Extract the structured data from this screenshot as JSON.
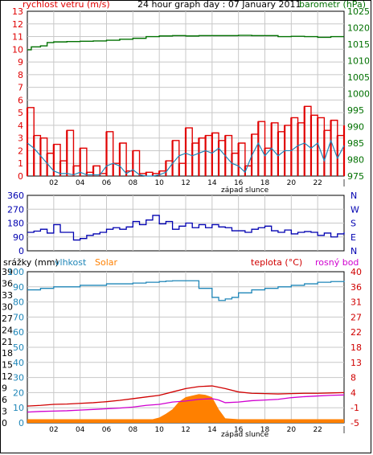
{
  "colors": {
    "wind": "#e00000",
    "gust_fill": "#e00000",
    "wind_avg": "#1f86b8",
    "pressure": "#007000",
    "direction": "#0000b0",
    "humidity": "#1f86b8",
    "solar": "#ff8000",
    "temp": "#d00000",
    "dew": "#d000d0",
    "rain": "#1f86b8",
    "grid": "#c8c8c8"
  },
  "chart_data": [
    {
      "type": "line",
      "title": "24 hour graph day : 07 January 2011",
      "left_axis_label": "rychlost vetru (m/s)",
      "right_axis_label": "barometr (hPa)",
      "x_tick_labels": [
        "02",
        "04",
        "06",
        "08",
        "10",
        "12",
        "14",
        "16",
        "18",
        "20",
        "22"
      ],
      "x_annotation": "západ slunce",
      "ylim_left": [
        0,
        13
      ],
      "ylim_right": [
        975,
        1025
      ],
      "yticks_left": [
        "0",
        "1",
        "2",
        "3",
        "4",
        "5",
        "6",
        "7",
        "8",
        "9",
        "10",
        "11",
        "12",
        "13"
      ],
      "yticks_right": [
        "975",
        "980",
        "985",
        "990",
        "995",
        "1000",
        "1005",
        "1010",
        "1015",
        "1020",
        "1025"
      ],
      "series": [
        {
          "name": "wind gust",
          "hours": [
            0,
            0.5,
            1,
            1.5,
            2,
            2.5,
            3,
            3.5,
            4,
            4.5,
            5,
            5.5,
            6,
            6.5,
            7,
            7.5,
            8,
            8.5,
            9,
            9.5,
            10,
            10.5,
            11,
            11.5,
            12,
            12.5,
            13,
            13.5,
            14,
            14.5,
            15,
            15.5,
            16,
            16.5,
            17,
            17.5,
            18,
            18.5,
            19,
            19.5,
            20,
            20.5,
            21,
            21.5,
            22,
            22.5,
            23,
            23.5,
            24
          ],
          "values": [
            5.4,
            3.2,
            3.0,
            1.8,
            2.5,
            1.2,
            3.6,
            0.8,
            2.2,
            0.3,
            0.8,
            0.2,
            3.5,
            1.0,
            2.6,
            0.4,
            2.0,
            0.2,
            0.3,
            0.2,
            0.4,
            1.2,
            2.8,
            1.0,
            3.8,
            2.6,
            3.0,
            3.2,
            3.4,
            2.8,
            3.2,
            1.8,
            2.6,
            0.8,
            3.3,
            4.3,
            2.2,
            4.2,
            3.5,
            4.0,
            4.6,
            4.2,
            5.5,
            4.8,
            4.6,
            3.6,
            4.4,
            3.2,
            4.0
          ]
        },
        {
          "name": "wind average",
          "hours": [
            0,
            0.5,
            1,
            1.5,
            2,
            2.5,
            3,
            3.5,
            4,
            4.5,
            5,
            5.5,
            6,
            6.5,
            7,
            7.5,
            8,
            8.5,
            9,
            9.5,
            10,
            10.5,
            11,
            11.5,
            12,
            12.5,
            13,
            13.5,
            14,
            14.5,
            15,
            15.5,
            16,
            16.5,
            17,
            17.5,
            18,
            18.5,
            19,
            19.5,
            20,
            20.5,
            21,
            21.5,
            22,
            22.5,
            23,
            23.5,
            24
          ],
          "values": [
            2.6,
            2.2,
            1.6,
            1.0,
            0.4,
            0.2,
            0.2,
            0.1,
            0.3,
            0.1,
            0.1,
            0.1,
            0.8,
            1.0,
            0.8,
            0.2,
            0.5,
            0.1,
            0.0,
            0.0,
            0.1,
            0.3,
            1.0,
            1.6,
            1.8,
            1.6,
            1.8,
            2.0,
            1.8,
            2.2,
            1.6,
            1.0,
            0.8,
            0.3,
            1.6,
            2.6,
            1.6,
            2.2,
            1.6,
            2.0,
            2.0,
            2.4,
            2.6,
            2.2,
            2.6,
            1.2,
            2.8,
            1.4,
            2.4
          ]
        },
        {
          "name": "pressure",
          "hours": [
            0,
            0.3,
            1,
            1.5,
            2,
            3,
            4,
            5,
            6,
            7,
            8,
            9,
            10,
            11,
            12,
            13,
            14,
            15,
            16,
            17,
            18,
            19,
            20,
            21,
            22,
            23,
            24
          ],
          "values": [
            1013.3,
            1014.2,
            1014.5,
            1015.5,
            1015.7,
            1015.8,
            1015.9,
            1016.0,
            1016.2,
            1016.5,
            1016.8,
            1017.3,
            1017.5,
            1017.6,
            1017.5,
            1017.6,
            1017.6,
            1017.6,
            1017.7,
            1017.6,
            1017.6,
            1017.3,
            1017.4,
            1017.3,
            1017.1,
            1017.3,
            1017.3
          ]
        }
      ]
    },
    {
      "type": "line",
      "ylim": [
        0,
        360
      ],
      "yticks_left": [
        "0",
        "90",
        "180",
        "270",
        "360"
      ],
      "yticks_right": [
        "N",
        "E",
        "S",
        "W",
        "N"
      ],
      "x_tick_labels": [
        "02",
        "04",
        "06",
        "08",
        "10",
        "12",
        "14",
        "16",
        "18",
        "20",
        "22"
      ],
      "series": [
        {
          "name": "wind direction",
          "hours": [
            0,
            0.5,
            1,
            1.5,
            2,
            2.5,
            3,
            3.5,
            4,
            4.5,
            5,
            5.5,
            6,
            6.5,
            7,
            7.5,
            8,
            8.5,
            9,
            9.5,
            10,
            10.5,
            11,
            11.5,
            12,
            12.5,
            13,
            13.5,
            14,
            14.5,
            15,
            15.5,
            16,
            16.5,
            17,
            17.5,
            18,
            18.5,
            19,
            19.5,
            20,
            20.5,
            21,
            21.5,
            22,
            22.5,
            23,
            23.5,
            24
          ],
          "values": [
            120,
            128,
            140,
            115,
            170,
            120,
            120,
            70,
            80,
            100,
            110,
            120,
            140,
            150,
            140,
            155,
            190,
            170,
            200,
            230,
            175,
            190,
            140,
            160,
            180,
            150,
            170,
            150,
            170,
            155,
            150,
            130,
            130,
            120,
            140,
            150,
            160,
            130,
            120,
            135,
            110,
            120,
            125,
            120,
            100,
            115,
            90,
            110,
            120
          ]
        }
      ]
    },
    {
      "type": "area",
      "left_axis_labels": [
        "srážky (mm)",
        "vlhkost",
        "Solar"
      ],
      "right_axis_labels": [
        "teplota (°C)",
        "rosný bod"
      ],
      "yticks_rain": [
        "0",
        "3",
        "6",
        "9",
        "12",
        "15",
        "18",
        "21",
        "24",
        "27",
        "30",
        "33",
        "36",
        "39"
      ],
      "yticks_humidity": [
        "0",
        "10",
        "20",
        "30",
        "40",
        "50",
        "60",
        "70",
        "80",
        "90",
        "100"
      ],
      "yticks_temp": [
        "-5",
        "-1",
        "4",
        "8",
        "13",
        "18",
        "22",
        "27",
        "31",
        "36",
        "40"
      ],
      "x_tick_labels": [
        "02",
        "04",
        "06",
        "08",
        "10",
        "12",
        "14",
        "16",
        "18",
        "20",
        "22"
      ],
      "x_annotation": "západ slunce",
      "series": [
        {
          "name": "vlhkost",
          "hours": [
            0,
            1,
            2,
            3,
            4,
            5,
            6,
            7,
            8,
            9,
            10,
            10.5,
            11,
            12,
            13,
            14,
            14.5,
            15,
            15.5,
            16,
            17,
            18,
            19,
            20,
            21,
            22,
            23,
            24
          ],
          "values": [
            88,
            89,
            90,
            90,
            91,
            91,
            92,
            92,
            92.5,
            93,
            93.5,
            93.8,
            94,
            94,
            89,
            83,
            81,
            82,
            83,
            86,
            88,
            89,
            90,
            91,
            92,
            93,
            93.5,
            94
          ]
        },
        {
          "name": "teplota",
          "hours": [
            0,
            1,
            2,
            3,
            4,
            5,
            6,
            7,
            8,
            9,
            10,
            11,
            12,
            13,
            14,
            15,
            16,
            17,
            18,
            19,
            20,
            21,
            22,
            23,
            24
          ],
          "values": [
            0.0,
            0.2,
            0.5,
            0.6,
            0.8,
            1.0,
            1.3,
            1.7,
            2.2,
            2.7,
            3.2,
            4.2,
            5.2,
            5.8,
            6.0,
            5.2,
            4.2,
            3.8,
            3.7,
            3.6,
            3.7,
            3.8,
            3.8,
            3.9,
            4.0
          ]
        },
        {
          "name": "rosný bod",
          "hours": [
            0,
            1,
            2,
            3,
            4,
            5,
            6,
            7,
            8,
            9,
            10,
            11,
            12,
            13,
            14,
            14.5,
            15,
            16,
            17,
            18,
            19,
            20,
            21,
            22,
            23,
            24
          ],
          "values": [
            -1.8,
            -1.6,
            -1.5,
            -1.4,
            -1.2,
            -1.0,
            -0.8,
            -0.6,
            -0.3,
            0.2,
            0.5,
            1.2,
            1.5,
            2.0,
            2.2,
            1.8,
            1.0,
            1.2,
            1.6,
            1.8,
            2.0,
            2.5,
            2.8,
            3.0,
            3.2,
            3.3
          ]
        },
        {
          "name": "Solar",
          "hours": [
            0,
            9.5,
            10,
            10.5,
            11,
            11.5,
            12,
            12.5,
            13,
            13.5,
            14,
            14.5,
            15,
            16,
            24
          ],
          "values": [
            2.4,
            2.4,
            3.5,
            6,
            9,
            14,
            17,
            18,
            19,
            18.5,
            17,
            9,
            3,
            2.4,
            2.4
          ]
        }
      ]
    }
  ]
}
